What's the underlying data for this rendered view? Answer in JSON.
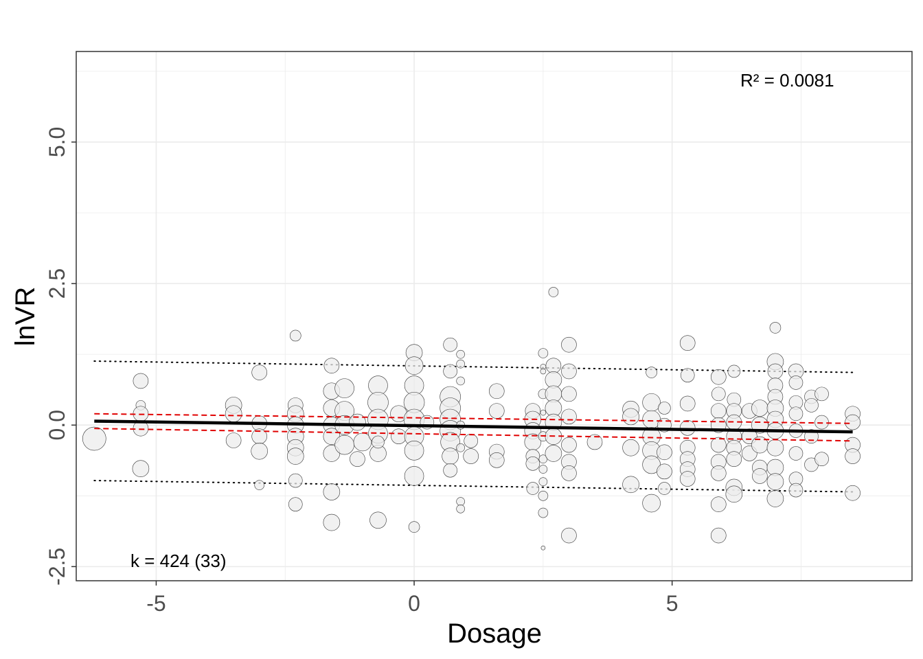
{
  "chart_data": {
    "type": "scatter",
    "xlabel": "Dosage",
    "ylabel": "lnVR",
    "xlim": [
      -6.55,
      9.65
    ],
    "ylim": [
      -2.75,
      6.6
    ],
    "xticks": [
      -5,
      0,
      5
    ],
    "xtick_labels": [
      "-5",
      "0",
      "5"
    ],
    "yticks": [
      -2.5,
      0,
      2.5,
      5
    ],
    "ytick_labels": [
      "-2.5",
      "0.0",
      "2.5",
      "5.0"
    ],
    "grid": true,
    "annotations": {
      "r2": "R² = 0.0081",
      "k": "k = 424 (33)"
    },
    "colors": {
      "point_fill": "#ececec",
      "point_stroke": "#333333",
      "fit_line": "#000000",
      "ci_line": "#e00000",
      "pi_line": "#000000",
      "grid": "#ebebeb"
    },
    "fit_line": {
      "x": [
        -6.2,
        8.5
      ],
      "y": [
        0.07,
        -0.12
      ]
    },
    "confidence_band": {
      "x": [
        -6.2,
        8.5
      ],
      "upper": [
        0.2,
        0.03
      ],
      "lower": [
        -0.06,
        -0.28
      ]
    },
    "prediction_band": {
      "x": [
        -6.2,
        8.5
      ],
      "upper": [
        1.13,
        0.93
      ],
      "lower": [
        -0.98,
        -1.18
      ]
    },
    "points": [
      {
        "x": -6.2,
        "y": -0.24,
        "size": 17
      },
      {
        "x": -5.3,
        "y": 0.78,
        "size": 11
      },
      {
        "x": -5.3,
        "y": 0.35,
        "size": 7
      },
      {
        "x": -5.3,
        "y": 0.2,
        "size": 11
      },
      {
        "x": -5.3,
        "y": -0.06,
        "size": 11
      },
      {
        "x": -5.3,
        "y": -0.77,
        "size": 12
      },
      {
        "x": -3.5,
        "y": 0.35,
        "size": 12
      },
      {
        "x": -3.5,
        "y": 0.2,
        "size": 12
      },
      {
        "x": -3.5,
        "y": -0.27,
        "size": 11
      },
      {
        "x": -3.0,
        "y": 0.93,
        "size": 11
      },
      {
        "x": -3.0,
        "y": 0.03,
        "size": 11
      },
      {
        "x": -3.0,
        "y": -0.2,
        "size": 11
      },
      {
        "x": -3.0,
        "y": -0.46,
        "size": 12
      },
      {
        "x": -3.0,
        "y": -1.06,
        "size": 7
      },
      {
        "x": -2.3,
        "y": 1.58,
        "size": 8
      },
      {
        "x": -2.3,
        "y": 0.35,
        "size": 11
      },
      {
        "x": -2.3,
        "y": 0.2,
        "size": 12
      },
      {
        "x": -2.3,
        "y": 0.0,
        "size": 12
      },
      {
        "x": -2.3,
        "y": -0.2,
        "size": 12
      },
      {
        "x": -2.3,
        "y": -0.4,
        "size": 12
      },
      {
        "x": -2.3,
        "y": -0.55,
        "size": 12
      },
      {
        "x": -2.3,
        "y": -0.98,
        "size": 10
      },
      {
        "x": -2.3,
        "y": -1.4,
        "size": 10
      },
      {
        "x": -1.6,
        "y": 1.05,
        "size": 11
      },
      {
        "x": -1.6,
        "y": 0.6,
        "size": 12
      },
      {
        "x": -1.6,
        "y": 0.3,
        "size": 12
      },
      {
        "x": -1.6,
        "y": 0.0,
        "size": 12
      },
      {
        "x": -1.6,
        "y": -0.2,
        "size": 12
      },
      {
        "x": -1.6,
        "y": -0.5,
        "size": 12
      },
      {
        "x": -1.6,
        "y": -1.18,
        "size": 12
      },
      {
        "x": -1.6,
        "y": -1.72,
        "size": 12
      },
      {
        "x": -1.35,
        "y": 0.65,
        "size": 14
      },
      {
        "x": -1.35,
        "y": 0.25,
        "size": 14
      },
      {
        "x": -1.35,
        "y": 0.0,
        "size": 14
      },
      {
        "x": -1.35,
        "y": -0.35,
        "size": 14
      },
      {
        "x": -1.1,
        "y": 0.05,
        "size": 12
      },
      {
        "x": -1.1,
        "y": -0.6,
        "size": 11
      },
      {
        "x": -1.0,
        "y": -0.3,
        "size": 13
      },
      {
        "x": -0.7,
        "y": 0.7,
        "size": 14
      },
      {
        "x": -0.7,
        "y": 0.4,
        "size": 15
      },
      {
        "x": -0.7,
        "y": 0.1,
        "size": 15
      },
      {
        "x": -0.7,
        "y": -0.15,
        "size": 14
      },
      {
        "x": -0.7,
        "y": -0.5,
        "size": 12
      },
      {
        "x": -0.7,
        "y": -1.68,
        "size": 12
      },
      {
        "x": -0.7,
        "y": -0.3,
        "size": 9
      },
      {
        "x": -0.3,
        "y": 0.2,
        "size": 12
      },
      {
        "x": -0.3,
        "y": -0.2,
        "size": 11
      },
      {
        "x": 0.0,
        "y": 1.28,
        "size": 12
      },
      {
        "x": 0.0,
        "y": 1.05,
        "size": 13
      },
      {
        "x": 0.0,
        "y": 0.7,
        "size": 14
      },
      {
        "x": 0.0,
        "y": 0.4,
        "size": 15
      },
      {
        "x": 0.0,
        "y": 0.1,
        "size": 15
      },
      {
        "x": 0.0,
        "y": -0.2,
        "size": 14
      },
      {
        "x": 0.0,
        "y": -0.45,
        "size": 14
      },
      {
        "x": 0.0,
        "y": -0.9,
        "size": 14
      },
      {
        "x": 0.0,
        "y": -1.8,
        "size": 8
      },
      {
        "x": 0.25,
        "y": 0.05,
        "size": 10
      },
      {
        "x": 0.7,
        "y": 1.42,
        "size": 10
      },
      {
        "x": 0.7,
        "y": 0.95,
        "size": 10
      },
      {
        "x": 0.7,
        "y": 0.5,
        "size": 15
      },
      {
        "x": 0.7,
        "y": 0.3,
        "size": 15
      },
      {
        "x": 0.7,
        "y": 0.1,
        "size": 15
      },
      {
        "x": 0.7,
        "y": -0.1,
        "size": 15
      },
      {
        "x": 0.7,
        "y": -0.3,
        "size": 14
      },
      {
        "x": 0.7,
        "y": -0.55,
        "size": 12
      },
      {
        "x": 0.7,
        "y": -0.8,
        "size": 10
      },
      {
        "x": 0.9,
        "y": 1.25,
        "size": 6
      },
      {
        "x": 0.9,
        "y": 1.08,
        "size": 6
      },
      {
        "x": 0.9,
        "y": 0.78,
        "size": 6
      },
      {
        "x": 0.9,
        "y": 0.0,
        "size": 6
      },
      {
        "x": 0.9,
        "y": -0.4,
        "size": 6
      },
      {
        "x": 0.9,
        "y": -1.35,
        "size": 6
      },
      {
        "x": 0.9,
        "y": -1.48,
        "size": 6
      },
      {
        "x": 1.1,
        "y": -0.28,
        "size": 10
      },
      {
        "x": 1.1,
        "y": -0.55,
        "size": 11
      },
      {
        "x": 1.6,
        "y": 0.6,
        "size": 11
      },
      {
        "x": 1.6,
        "y": 0.25,
        "size": 11
      },
      {
        "x": 1.6,
        "y": -0.47,
        "size": 11
      },
      {
        "x": 1.6,
        "y": -0.62,
        "size": 11
      },
      {
        "x": 2.3,
        "y": 0.25,
        "size": 11
      },
      {
        "x": 2.3,
        "y": 0.1,
        "size": 12
      },
      {
        "x": 2.3,
        "y": -0.1,
        "size": 12
      },
      {
        "x": 2.3,
        "y": -0.3,
        "size": 12
      },
      {
        "x": 2.3,
        "y": -0.55,
        "size": 10
      },
      {
        "x": 2.3,
        "y": -0.68,
        "size": 10
      },
      {
        "x": 2.3,
        "y": -1.12,
        "size": 9
      },
      {
        "x": 2.5,
        "y": 1.27,
        "size": 7
      },
      {
        "x": 2.5,
        "y": 1.03,
        "size": 4
      },
      {
        "x": 2.5,
        "y": 0.95,
        "size": 4
      },
      {
        "x": 2.5,
        "y": 0.55,
        "size": 7
      },
      {
        "x": 2.5,
        "y": 0.22,
        "size": 4
      },
      {
        "x": 2.5,
        "y": -0.2,
        "size": 7
      },
      {
        "x": 2.5,
        "y": -0.6,
        "size": 6
      },
      {
        "x": 2.5,
        "y": -0.78,
        "size": 6
      },
      {
        "x": 2.5,
        "y": -1.0,
        "size": 6
      },
      {
        "x": 2.5,
        "y": -1.25,
        "size": 7
      },
      {
        "x": 2.5,
        "y": -1.55,
        "size": 7
      },
      {
        "x": 2.5,
        "y": -2.17,
        "size": 3
      },
      {
        "x": 2.7,
        "y": 2.35,
        "size": 7
      },
      {
        "x": 2.7,
        "y": 1.05,
        "size": 11
      },
      {
        "x": 2.7,
        "y": 0.8,
        "size": 12
      },
      {
        "x": 2.7,
        "y": 0.55,
        "size": 12
      },
      {
        "x": 2.7,
        "y": 0.3,
        "size": 12
      },
      {
        "x": 2.7,
        "y": 0.05,
        "size": 12
      },
      {
        "x": 2.7,
        "y": -0.2,
        "size": 12
      },
      {
        "x": 2.7,
        "y": -0.5,
        "size": 12
      },
      {
        "x": 3.0,
        "y": 1.42,
        "size": 11
      },
      {
        "x": 3.0,
        "y": 0.95,
        "size": 11
      },
      {
        "x": 3.0,
        "y": 0.55,
        "size": 11
      },
      {
        "x": 3.0,
        "y": 0.15,
        "size": 11
      },
      {
        "x": 3.0,
        "y": -0.35,
        "size": 11
      },
      {
        "x": 3.0,
        "y": -0.65,
        "size": 11
      },
      {
        "x": 3.0,
        "y": -0.85,
        "size": 11
      },
      {
        "x": 3.0,
        "y": -1.95,
        "size": 11
      },
      {
        "x": 3.5,
        "y": -0.3,
        "size": 11
      },
      {
        "x": 4.2,
        "y": 0.28,
        "size": 12
      },
      {
        "x": 4.2,
        "y": 0.15,
        "size": 12
      },
      {
        "x": 4.2,
        "y": -0.4,
        "size": 12
      },
      {
        "x": 4.2,
        "y": -1.05,
        "size": 12
      },
      {
        "x": 4.6,
        "y": 0.93,
        "size": 8
      },
      {
        "x": 4.6,
        "y": 0.4,
        "size": 13
      },
      {
        "x": 4.6,
        "y": 0.1,
        "size": 13
      },
      {
        "x": 4.6,
        "y": -0.2,
        "size": 13
      },
      {
        "x": 4.6,
        "y": -0.45,
        "size": 13
      },
      {
        "x": 4.6,
        "y": -0.7,
        "size": 13
      },
      {
        "x": 4.6,
        "y": -1.38,
        "size": 13
      },
      {
        "x": 4.85,
        "y": 0.3,
        "size": 9
      },
      {
        "x": 4.85,
        "y": 0.0,
        "size": 10
      },
      {
        "x": 4.85,
        "y": -0.48,
        "size": 11
      },
      {
        "x": 4.85,
        "y": -0.82,
        "size": 11
      },
      {
        "x": 4.85,
        "y": -1.12,
        "size": 9
      },
      {
        "x": 5.3,
        "y": 1.45,
        "size": 11
      },
      {
        "x": 5.3,
        "y": 0.88,
        "size": 10
      },
      {
        "x": 5.3,
        "y": 0.38,
        "size": 11
      },
      {
        "x": 5.3,
        "y": -0.05,
        "size": 11
      },
      {
        "x": 5.3,
        "y": -0.4,
        "size": 11
      },
      {
        "x": 5.3,
        "y": -0.6,
        "size": 11
      },
      {
        "x": 5.3,
        "y": -0.78,
        "size": 11
      },
      {
        "x": 5.3,
        "y": -0.95,
        "size": 11
      },
      {
        "x": 5.9,
        "y": 0.85,
        "size": 11
      },
      {
        "x": 5.9,
        "y": 0.55,
        "size": 10
      },
      {
        "x": 5.9,
        "y": 0.25,
        "size": 11
      },
      {
        "x": 5.9,
        "y": 0.0,
        "size": 11
      },
      {
        "x": 5.9,
        "y": -0.35,
        "size": 11
      },
      {
        "x": 5.9,
        "y": -0.65,
        "size": 11
      },
      {
        "x": 5.9,
        "y": -0.85,
        "size": 11
      },
      {
        "x": 5.9,
        "y": -1.4,
        "size": 11
      },
      {
        "x": 5.9,
        "y": -1.95,
        "size": 11
      },
      {
        "x": 6.2,
        "y": 0.95,
        "size": 9
      },
      {
        "x": 6.2,
        "y": 0.45,
        "size": 10
      },
      {
        "x": 6.2,
        "y": 0.25,
        "size": 11
      },
      {
        "x": 6.2,
        "y": 0.05,
        "size": 11
      },
      {
        "x": 6.2,
        "y": -0.2,
        "size": 11
      },
      {
        "x": 6.2,
        "y": -0.4,
        "size": 11
      },
      {
        "x": 6.2,
        "y": -0.6,
        "size": 11
      },
      {
        "x": 6.2,
        "y": -1.1,
        "size": 12
      },
      {
        "x": 6.2,
        "y": -1.22,
        "size": 12
      },
      {
        "x": 6.5,
        "y": 0.25,
        "size": 11
      },
      {
        "x": 6.5,
        "y": -0.2,
        "size": 11
      },
      {
        "x": 6.5,
        "y": -0.5,
        "size": 11
      },
      {
        "x": 6.7,
        "y": 0.3,
        "size": 12
      },
      {
        "x": 6.7,
        "y": 0.0,
        "size": 12
      },
      {
        "x": 6.7,
        "y": -0.35,
        "size": 12
      },
      {
        "x": 6.7,
        "y": -0.75,
        "size": 11
      },
      {
        "x": 6.7,
        "y": -0.9,
        "size": 11
      },
      {
        "x": 7.0,
        "y": 1.72,
        "size": 8
      },
      {
        "x": 7.0,
        "y": 1.12,
        "size": 12
      },
      {
        "x": 7.0,
        "y": 0.95,
        "size": 11
      },
      {
        "x": 7.0,
        "y": 0.7,
        "size": 11
      },
      {
        "x": 7.0,
        "y": 0.5,
        "size": 11
      },
      {
        "x": 7.0,
        "y": 0.3,
        "size": 12
      },
      {
        "x": 7.0,
        "y": 0.1,
        "size": 12
      },
      {
        "x": 7.0,
        "y": -0.1,
        "size": 12
      },
      {
        "x": 7.0,
        "y": -0.4,
        "size": 12
      },
      {
        "x": 7.0,
        "y": -0.75,
        "size": 12
      },
      {
        "x": 7.0,
        "y": -1.0,
        "size": 12
      },
      {
        "x": 7.0,
        "y": -1.3,
        "size": 12
      },
      {
        "x": 7.4,
        "y": 0.95,
        "size": 11
      },
      {
        "x": 7.4,
        "y": 0.75,
        "size": 10
      },
      {
        "x": 7.4,
        "y": 0.4,
        "size": 10
      },
      {
        "x": 7.4,
        "y": 0.2,
        "size": 10
      },
      {
        "x": 7.4,
        "y": -0.1,
        "size": 10
      },
      {
        "x": 7.4,
        "y": -0.5,
        "size": 10
      },
      {
        "x": 7.4,
        "y": -0.95,
        "size": 10
      },
      {
        "x": 7.4,
        "y": -1.15,
        "size": 10
      },
      {
        "x": 7.7,
        "y": 0.5,
        "size": 10
      },
      {
        "x": 7.7,
        "y": 0.35,
        "size": 10
      },
      {
        "x": 7.7,
        "y": -0.2,
        "size": 10
      },
      {
        "x": 7.7,
        "y": -0.7,
        "size": 10
      },
      {
        "x": 7.9,
        "y": 0.55,
        "size": 10
      },
      {
        "x": 7.9,
        "y": 0.05,
        "size": 10
      },
      {
        "x": 7.9,
        "y": -0.6,
        "size": 10
      },
      {
        "x": 8.5,
        "y": 0.2,
        "size": 11
      },
      {
        "x": 8.5,
        "y": 0.05,
        "size": 11
      },
      {
        "x": 8.5,
        "y": -0.35,
        "size": 11
      },
      {
        "x": 8.5,
        "y": -0.55,
        "size": 11
      },
      {
        "x": 8.5,
        "y": -1.2,
        "size": 11
      }
    ]
  }
}
